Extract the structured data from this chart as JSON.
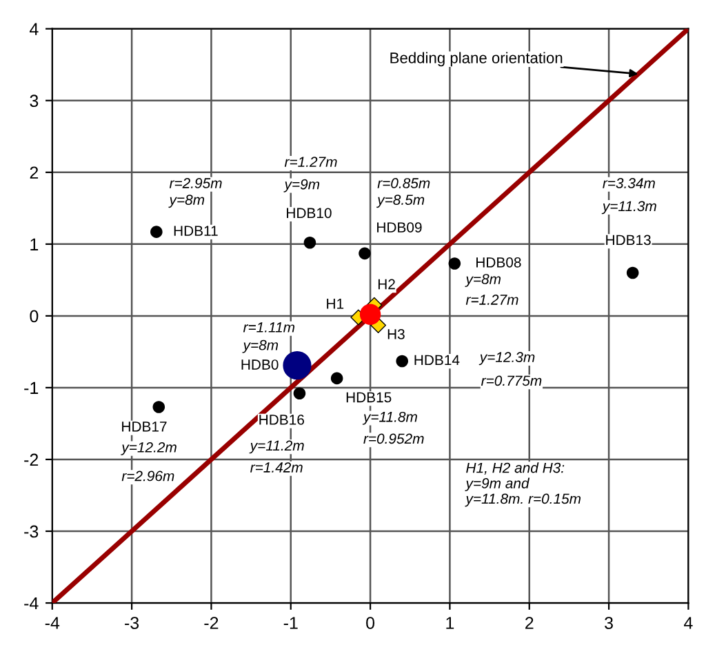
{
  "chart_data": {
    "type": "scatter",
    "xlim": [
      -4,
      4
    ],
    "ylim": [
      -4,
      4
    ],
    "xticks": [
      -4,
      -3,
      -2,
      -1,
      0,
      1,
      2,
      3,
      4
    ],
    "yticks": [
      -4,
      -3,
      -2,
      -1,
      0,
      1,
      2,
      3,
      4
    ],
    "grid": true,
    "legend": false,
    "series": [
      {
        "type": "line",
        "color": "#990000",
        "marker": "none",
        "line_style": "solid",
        "x": [
          -4,
          4
        ],
        "values": [
          -4,
          4
        ]
      },
      {
        "color": "#000000",
        "marker": "circle",
        "x": [
          -2.69,
          -0.76,
          -0.07,
          1.06,
          3.3,
          0.4,
          -0.42,
          -0.89,
          -2.66
        ],
        "values": [
          1.17,
          1.02,
          0.87,
          0.73,
          0.6,
          -0.63,
          -0.87,
          -1.08,
          -1.27
        ]
      },
      {
        "color": "#000080",
        "marker": "circle",
        "x": [
          -0.92
        ],
        "values": [
          -0.69
        ]
      },
      {
        "color": "#ffd700",
        "marker": "diamond",
        "x": [
          -0.15,
          0.1,
          0.05
        ],
        "values": [
          -0.02,
          -0.13,
          0.15
        ]
      },
      {
        "color": "#ff0000",
        "marker": "circle",
        "x": [
          0
        ],
        "values": [
          0.02
        ]
      }
    ],
    "annotations": [
      {
        "text": "Bedding plane orientation",
        "x": 3.37,
        "y": 3.37
      },
      "HDB11",
      "r=2.95m",
      "y=8m",
      "r=1.27m",
      "y=9m",
      "HDB10",
      "r=0.85m",
      "y=8.5m",
      "HDB09",
      "HDB08",
      "y=8m",
      "r=1.27m",
      "r=3.34m",
      "y=11.3m",
      "HDB13",
      "H1",
      "H2",
      "H3",
      "HDB14",
      "y=12.3m",
      "r=0.775m",
      "r=1.11m",
      "y=8m",
      "HDB0",
      "HDB15",
      "y=11.8m",
      "r=0.952m",
      "HDB16",
      "y=11.2m",
      "r=1.42m",
      "HDB17",
      "y=12.2m",
      "r=2.96m",
      "H1, H2 and H3:\ny=9m and\ny=11.8m. r=0.15m"
    ]
  }
}
